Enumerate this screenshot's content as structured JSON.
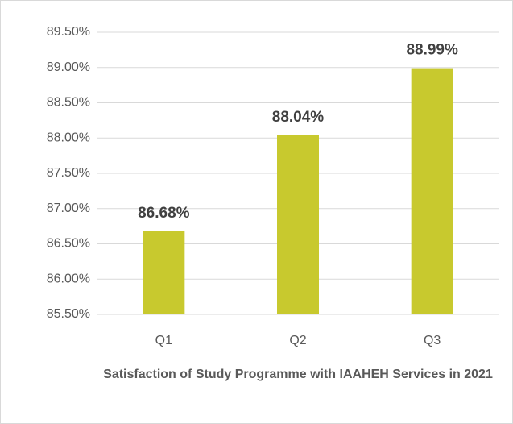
{
  "chart_data": {
    "type": "bar",
    "title": "Satisfaction of Study Programme with IAAHEH Services in 2021",
    "categories": [
      "Q1",
      "Q2",
      "Q3"
    ],
    "values": [
      86.68,
      88.04,
      88.99
    ],
    "value_labels": [
      "86.68%",
      "88.04%",
      "88.99%"
    ],
    "color": "#c8c92e",
    "ylim": [
      85.5,
      89.5
    ],
    "yticks": [
      {
        "value": 85.5,
        "label": "85.50%"
      },
      {
        "value": 86,
        "label": "86.00%"
      },
      {
        "value": 86.5,
        "label": "86.50%"
      },
      {
        "value": 87,
        "label": "87.00%"
      },
      {
        "value": 87.5,
        "label": "87.50%"
      },
      {
        "value": 88,
        "label": "88.00%"
      },
      {
        "value": 88.5,
        "label": "88.50%"
      },
      {
        "value": 89,
        "label": "89.00%"
      },
      {
        "value": 89.5,
        "label": "89.50%"
      }
    ],
    "grid": true
  }
}
